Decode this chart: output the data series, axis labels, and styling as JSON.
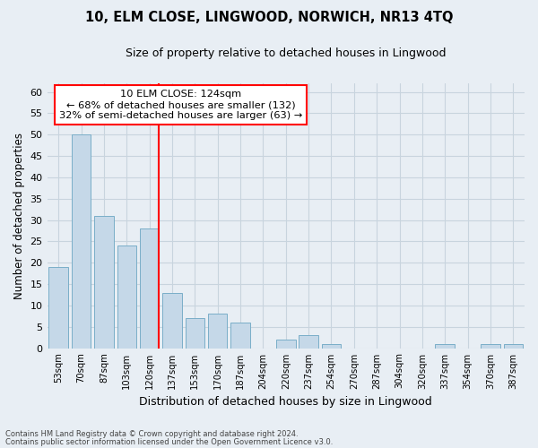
{
  "title": "10, ELM CLOSE, LINGWOOD, NORWICH, NR13 4TQ",
  "subtitle": "Size of property relative to detached houses in Lingwood",
  "xlabel": "Distribution of detached houses by size in Lingwood",
  "ylabel": "Number of detached properties",
  "bar_labels": [
    "53sqm",
    "70sqm",
    "87sqm",
    "103sqm",
    "120sqm",
    "137sqm",
    "153sqm",
    "170sqm",
    "187sqm",
    "204sqm",
    "220sqm",
    "237sqm",
    "254sqm",
    "270sqm",
    "287sqm",
    "304sqm",
    "320sqm",
    "337sqm",
    "354sqm",
    "370sqm",
    "387sqm"
  ],
  "bar_values": [
    19,
    50,
    31,
    24,
    28,
    13,
    7,
    8,
    6,
    0,
    2,
    3,
    1,
    0,
    0,
    0,
    0,
    1,
    0,
    1,
    1
  ],
  "bar_color": "#c5d8e8",
  "bar_edge_color": "#7aaec8",
  "reference_line_idx": 4,
  "reference_line_color": "red",
  "annotation_title": "10 ELM CLOSE: 124sqm",
  "annotation_line1": "← 68% of detached houses are smaller (132)",
  "annotation_line2": "32% of semi-detached houses are larger (63) →",
  "annotation_box_color": "white",
  "annotation_box_edge": "red",
  "ylim": [
    0,
    62
  ],
  "yticks": [
    0,
    5,
    10,
    15,
    20,
    25,
    30,
    35,
    40,
    45,
    50,
    55,
    60
  ],
  "grid_color": "#c8d4de",
  "background_color": "#e8eef4",
  "footnote1": "Contains HM Land Registry data © Crown copyright and database right 2024.",
  "footnote2": "Contains public sector information licensed under the Open Government Licence v3.0."
}
